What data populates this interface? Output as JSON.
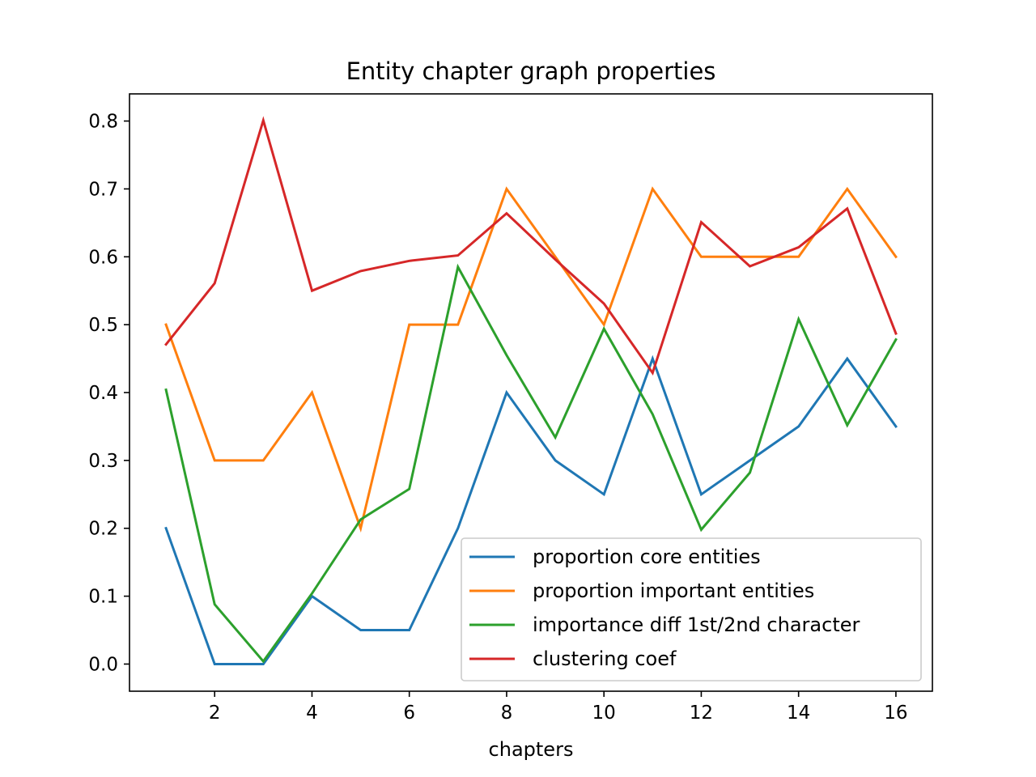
{
  "chart_data": {
    "type": "line",
    "title": "Entity chapter graph properties",
    "xlabel": "chapters",
    "ylabel": "",
    "x": [
      1,
      2,
      3,
      4,
      5,
      6,
      7,
      8,
      9,
      10,
      11,
      12,
      13,
      14,
      15,
      16
    ],
    "xlim": [
      0.25,
      16.75
    ],
    "ylim": [
      -0.04,
      0.84
    ],
    "xticks": [
      2,
      4,
      6,
      8,
      10,
      12,
      14,
      16
    ],
    "yticks": [
      0.0,
      0.1,
      0.2,
      0.3,
      0.4,
      0.5,
      0.6,
      0.7,
      0.8
    ],
    "grid": false,
    "legend_position": "lower-right",
    "series": [
      {
        "name": "proportion core entities",
        "color": "#1f77b4",
        "values": [
          0.2,
          0.0,
          0.0,
          0.1,
          0.05,
          0.05,
          0.2,
          0.4,
          0.3,
          0.25,
          0.45,
          0.25,
          0.3,
          0.35,
          0.45,
          0.35
        ]
      },
      {
        "name": "proportion important entities",
        "color": "#ff7f0e",
        "values": [
          0.5,
          0.3,
          0.3,
          0.4,
          0.2,
          0.5,
          0.5,
          0.7,
          0.6,
          0.5,
          0.7,
          0.6,
          0.6,
          0.6,
          0.7,
          0.6
        ]
      },
      {
        "name": "importance diff 1st/2nd character",
        "color": "#2ca02c",
        "values": [
          0.404,
          0.088,
          0.004,
          0.104,
          0.213,
          0.258,
          0.585,
          0.455,
          0.334,
          0.494,
          0.368,
          0.198,
          0.282,
          0.508,
          0.352,
          0.478
        ]
      },
      {
        "name": "clustering coef",
        "color": "#d62728",
        "values": [
          0.471,
          0.561,
          0.801,
          0.55,
          0.579,
          0.594,
          0.602,
          0.664,
          0.596,
          0.531,
          0.429,
          0.651,
          0.586,
          0.614,
          0.671,
          0.487
        ]
      }
    ]
  }
}
